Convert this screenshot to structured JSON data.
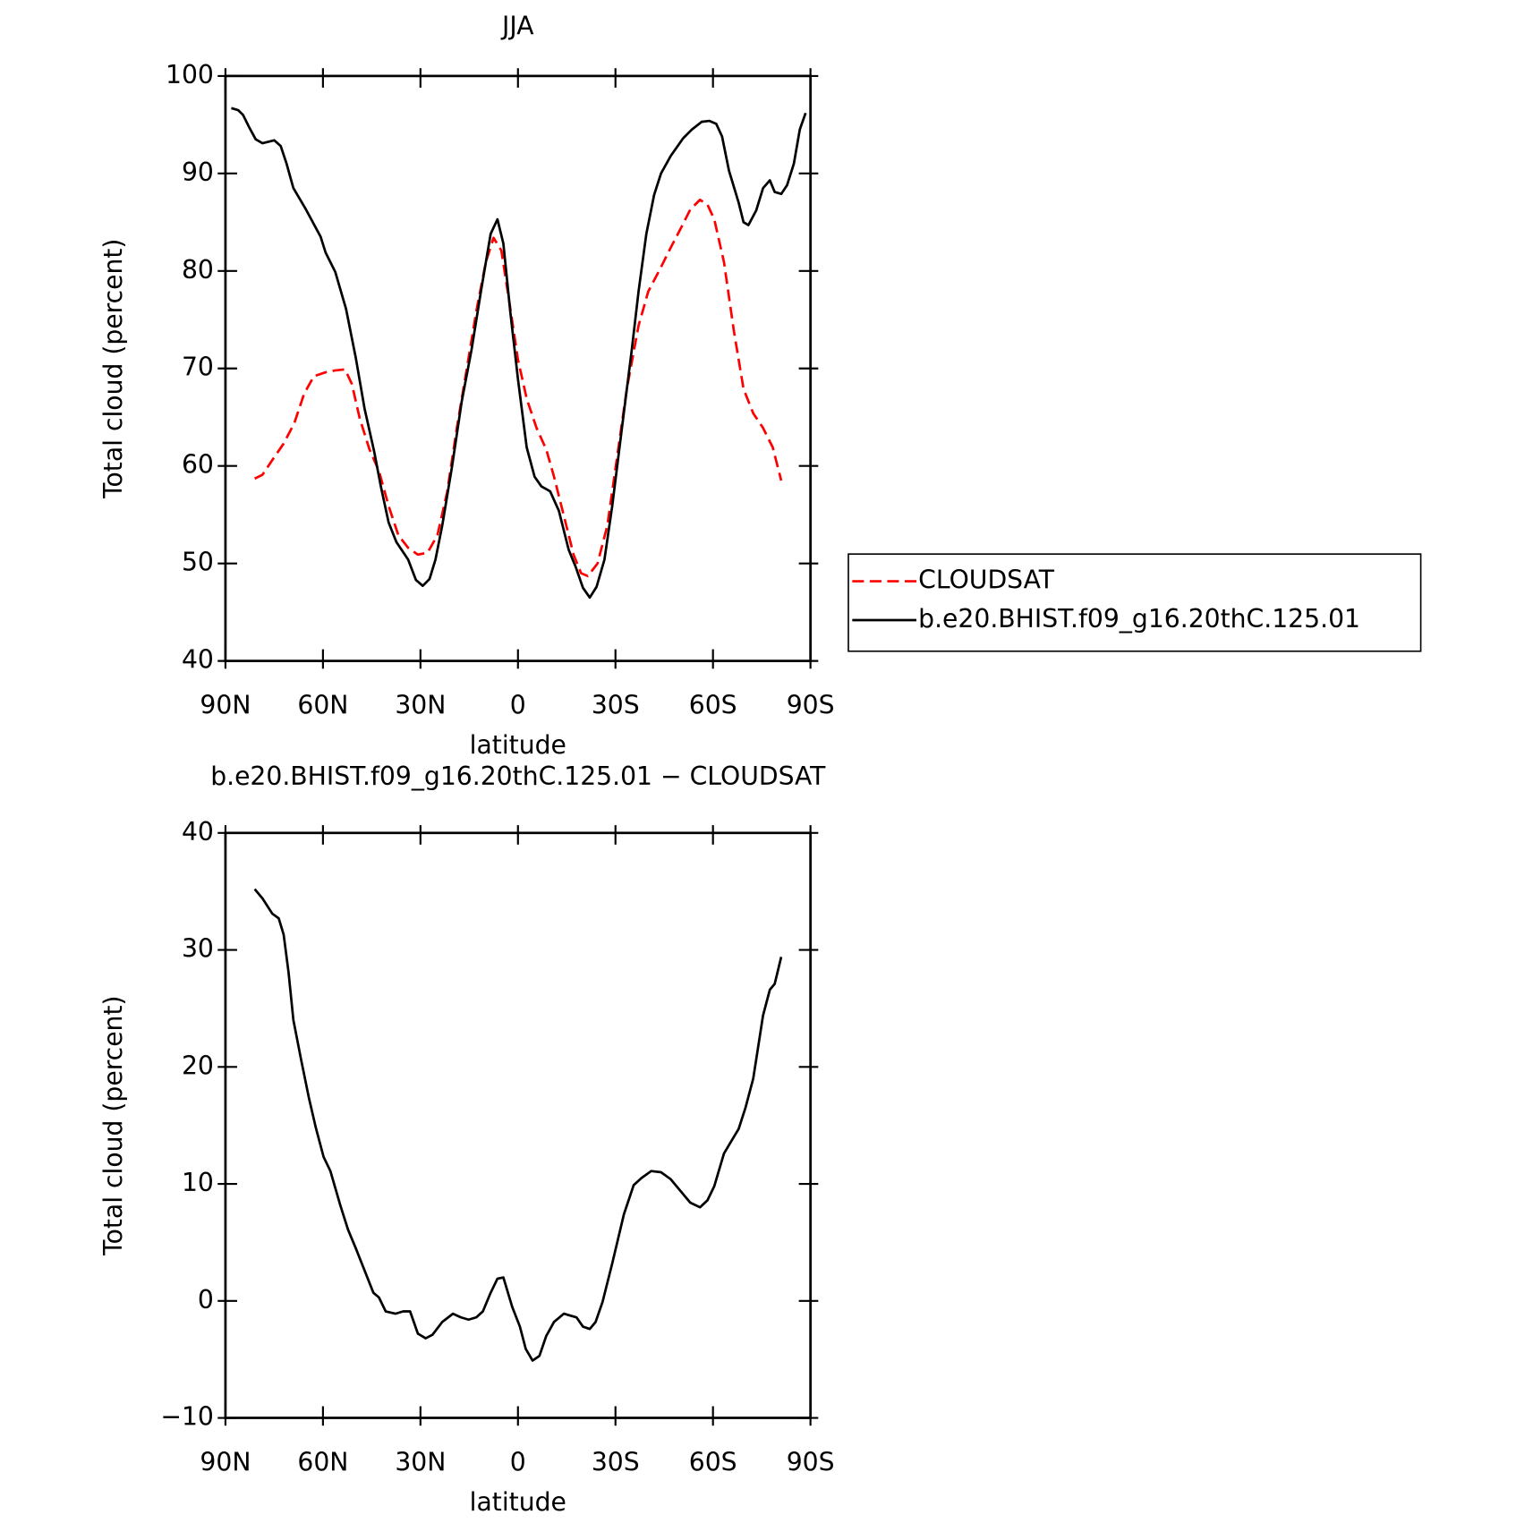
{
  "chart_data": [
    {
      "type": "line",
      "title": "JJA",
      "xlabel": "latitude",
      "ylabel": "Total cloud (percent)",
      "xlim": [
        90,
        -90
      ],
      "xticks": [
        {
          "value": 90,
          "label": "90N"
        },
        {
          "value": 60,
          "label": "60N"
        },
        {
          "value": 30,
          "label": "30N"
        },
        0,
        {
          "value": -30,
          "label": "30S"
        },
        {
          "value": -60,
          "label": "60S"
        },
        {
          "value": -90,
          "label": "90S"
        }
      ],
      "ylim": [
        40,
        100
      ],
      "yticks": [
        40,
        50,
        60,
        70,
        80,
        90,
        100
      ],
      "legend": "right",
      "series": [
        {
          "name": "CLOUDSAT",
          "color": "#ff0000",
          "dash": true,
          "x": [
            81.0,
            78.6,
            75.6,
            72.1,
            68.8,
            65.8,
            62.8,
            59.2,
            56.2,
            53.2,
            51.1,
            48.7,
            45.7,
            42.8,
            39.8,
            36.8,
            33.8,
            30.8,
            27.8,
            24.8,
            21.8,
            18.8,
            15.8,
            12.8,
            9.9,
            7.5,
            5.1,
            2.7,
            0.0,
            -2.7,
            -5.7,
            -8.7,
            -11.1,
            -14.1,
            -17.1,
            -19.4,
            -21.5,
            -24.5,
            -27.5,
            -30.5,
            -33.5,
            -37.1,
            -40.1,
            -44.0,
            -47.0,
            -50.0,
            -53.0,
            -56.0,
            -58.3,
            -60.4,
            -63.4,
            -66.4,
            -69.4,
            -72.4,
            -75.4,
            -78.4,
            -81.0
          ],
          "values": [
            58.7,
            59.1,
            60.6,
            62.3,
            64.4,
            67.4,
            69.2,
            69.6,
            69.8,
            69.9,
            68.4,
            64.9,
            61.7,
            59.5,
            55.9,
            52.9,
            51.6,
            50.9,
            51.1,
            52.9,
            57.3,
            63.9,
            69.9,
            75.9,
            80.9,
            83.4,
            82.1,
            76.9,
            70.9,
            66.9,
            63.9,
            61.7,
            58.9,
            54.9,
            50.9,
            49.0,
            48.7,
            50.0,
            53.9,
            60.9,
            67.9,
            74.4,
            77.9,
            80.4,
            82.4,
            84.3,
            86.3,
            87.3,
            86.8,
            85.3,
            80.9,
            73.9,
            67.9,
            65.4,
            63.9,
            61.9,
            58.5
          ]
        },
        {
          "name": "b.e20.BHIST.f09_g16.20thC.125.01",
          "color": "#000000",
          "dash": false,
          "x": [
            88.2,
            86.1,
            84.6,
            82.8,
            80.7,
            78.6,
            75.0,
            73.0,
            71.2,
            69.1,
            65.2,
            60.7,
            59.2,
            56.2,
            52.9,
            49.9,
            47.2,
            44.2,
            42.2,
            39.8,
            37.4,
            33.8,
            31.4,
            29.3,
            27.2,
            25.4,
            23.3,
            20.3,
            17.3,
            14.3,
            11.4,
            8.4,
            6.3,
            4.5,
            2.4,
            0.0,
            -2.7,
            -5.1,
            -7.2,
            -9.9,
            -12.6,
            -15.6,
            -17.7,
            -20.0,
            -22.1,
            -24.2,
            -26.6,
            -29.0,
            -32.0,
            -35.0,
            -37.1,
            -39.5,
            -41.9,
            -44.0,
            -47.0,
            -50.8,
            -53.5,
            -56.5,
            -58.9,
            -61.0,
            -62.8,
            -64.9,
            -67.9,
            -69.4,
            -70.9,
            -73.3,
            -75.4,
            -77.5,
            -79.0,
            -81.0,
            -82.8,
            -84.9,
            -86.7,
            -88.5
          ],
          "values": [
            96.7,
            96.5,
            96.0,
            94.8,
            93.5,
            93.1,
            93.4,
            92.8,
            91.0,
            88.5,
            86.3,
            83.5,
            81.9,
            79.9,
            76.1,
            71.1,
            65.9,
            61.4,
            57.9,
            54.2,
            52.2,
            50.4,
            48.3,
            47.7,
            48.4,
            50.4,
            53.9,
            59.9,
            66.6,
            71.9,
            77.9,
            83.8,
            85.3,
            82.8,
            75.9,
            68.9,
            61.9,
            58.9,
            57.9,
            57.4,
            55.4,
            51.4,
            49.7,
            47.5,
            46.5,
            47.6,
            50.4,
            55.9,
            63.9,
            71.9,
            77.9,
            83.8,
            87.8,
            90.0,
            91.8,
            93.6,
            94.5,
            95.3,
            95.4,
            95.1,
            93.8,
            90.3,
            87.0,
            85.0,
            84.7,
            86.2,
            88.5,
            89.3,
            88.1,
            87.9,
            88.8,
            91.0,
            94.5,
            96.2
          ]
        }
      ]
    },
    {
      "type": "line",
      "title": "b.e20.BHIST.f09_g16.20thC.125.01 − CLOUDSAT",
      "xlabel": "latitude",
      "ylabel": "Total cloud (percent)",
      "xlim": [
        90,
        -90
      ],
      "xticks": [
        {
          "value": 90,
          "label": "90N"
        },
        {
          "value": 60,
          "label": "60N"
        },
        {
          "value": 30,
          "label": "30N"
        },
        0,
        {
          "value": -30,
          "label": "30S"
        },
        {
          "value": -60,
          "label": "60S"
        },
        {
          "value": -90,
          "label": "90S"
        }
      ],
      "ylim": [
        -10,
        40
      ],
      "yticks": [
        {
          "value": -10,
          "label": "−10"
        },
        0,
        10,
        20,
        30,
        40
      ],
      "color": "#000000",
      "x": [
        81.0,
        78.6,
        75.6,
        73.6,
        72.1,
        70.6,
        69.1,
        66.7,
        64.3,
        62.2,
        59.8,
        57.7,
        54.7,
        52.3,
        49.9,
        46.9,
        44.5,
        42.8,
        40.7,
        37.7,
        35.3,
        33.2,
        30.8,
        28.4,
        26.3,
        23.3,
        20.0,
        17.6,
        15.2,
        12.8,
        10.8,
        8.4,
        6.3,
        4.5,
        1.8,
        -0.6,
        -2.4,
        -4.5,
        -6.6,
        -8.7,
        -11.1,
        -14.1,
        -18.0,
        -20.0,
        -22.1,
        -23.9,
        -26.0,
        -29.0,
        -32.6,
        -35.6,
        -38.0,
        -41.0,
        -44.0,
        -47.0,
        -50.0,
        -53.0,
        -56.0,
        -58.3,
        -60.4,
        -63.4,
        -65.5,
        -67.9,
        -70.0,
        -72.4,
        -75.4,
        -77.5,
        -79.0,
        -81.0
      ],
      "values": [
        35.2,
        34.4,
        33.1,
        32.7,
        31.3,
        28.1,
        24.0,
        20.6,
        17.3,
        14.8,
        12.3,
        11.1,
        8.2,
        6.1,
        4.5,
        2.4,
        0.7,
        0.3,
        -0.9,
        -1.1,
        -0.9,
        -0.9,
        -2.8,
        -3.2,
        -2.9,
        -1.8,
        -1.1,
        -1.4,
        -1.6,
        -1.4,
        -0.9,
        0.7,
        1.9,
        2.0,
        -0.5,
        -2.2,
        -4.1,
        -5.1,
        -4.7,
        -3.0,
        -1.8,
        -1.1,
        -1.4,
        -2.2,
        -2.4,
        -1.8,
        -0.1,
        3.2,
        7.4,
        9.9,
        10.5,
        11.1,
        11.0,
        10.4,
        9.4,
        8.4,
        8.0,
        8.6,
        9.8,
        12.6,
        13.6,
        14.7,
        16.5,
        19.0,
        24.4,
        26.6,
        27.1,
        29.4
      ]
    }
  ]
}
